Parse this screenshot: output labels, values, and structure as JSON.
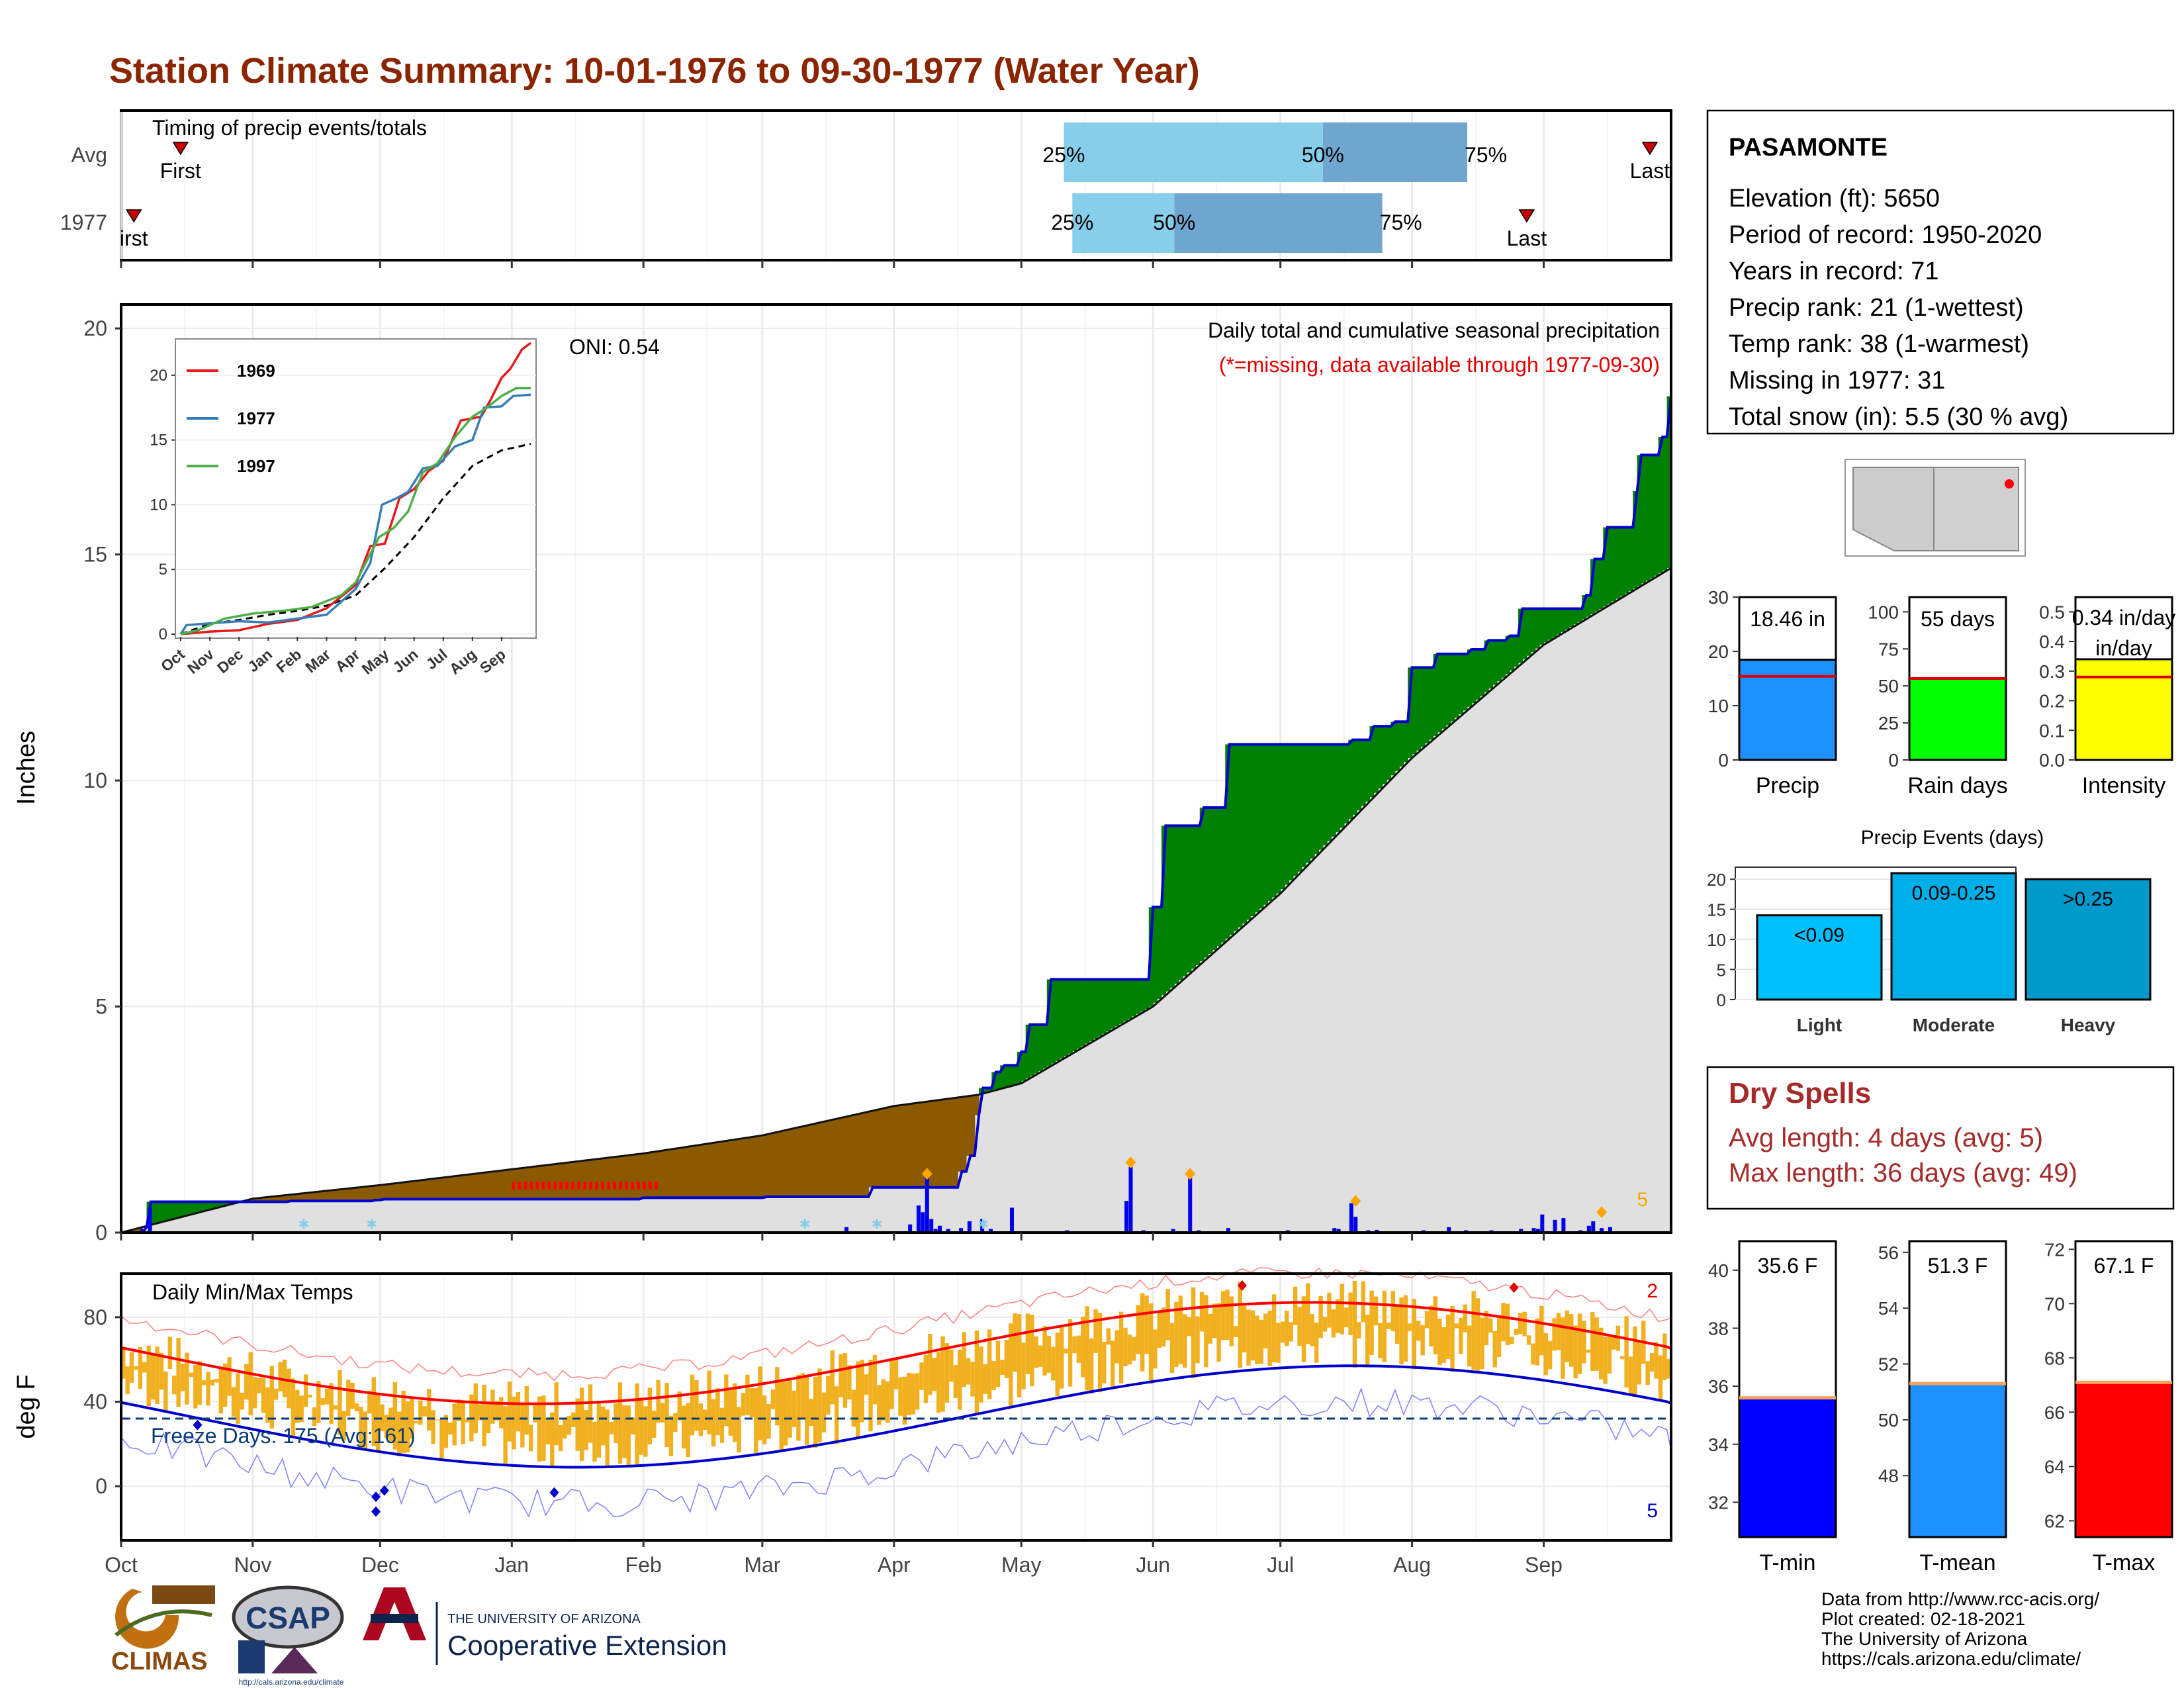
{
  "title": "Station Climate Summary: 10-01-1976 to 09-30-1977 (Water Year)",
  "months": [
    "Oct",
    "Nov",
    "Dec",
    "Jan",
    "Feb",
    "Mar",
    "Apr",
    "May",
    "Jun",
    "Jul",
    "Aug",
    "Sep"
  ],
  "timing": {
    "label": "Timing of precip events/totals",
    "rows": [
      "Avg",
      "1977"
    ],
    "avg": {
      "first_day": 14,
      "last_day": 360,
      "p25": 222,
      "p50": 283,
      "p75": 317,
      "p25_label": "25%",
      "p50_label": "50%",
      "p75_label": "75%",
      "first_label": "First",
      "last_label": "Last"
    },
    "year": {
      "first_day": 3,
      "last_day": 331,
      "p25": 224,
      "p50": 248,
      "p75": 297,
      "p25_label": "25%",
      "p50_label": "50%",
      "p75_label": "75%",
      "first_label": "irst",
      "last_label": "Last"
    }
  },
  "station": {
    "name": "PASAMONTE",
    "lines": [
      "Elevation (ft): 5650",
      "Period of record: 1950-2020",
      "Years in record: 71",
      "Precip rank: 21 (1-wettest)",
      "Temp rank: 38 (1-warmest)",
      "Missing in 1977: 31",
      "Total snow (in): 5.5 (30 % avg)"
    ]
  },
  "precip_panel": {
    "ylabel": "Inches",
    "oni": "ONI: 0.54",
    "caption": "Daily total and cumulative seasonal precipitation",
    "missing_note": "(*=missing, data available through 1977-09-30)",
    "corner_count": "5",
    "colors": {
      "cumulative_line": "#0000cd",
      "wet": "#008000",
      "dry": "#8b5a00",
      "normal": "#e0e0e0",
      "daily_bar": "#0000ee",
      "missing": "#ff0000"
    }
  },
  "inset": {
    "series": [
      {
        "name": "1969",
        "color": "#e41a1c"
      },
      {
        "name": "1977",
        "color": "#377eb8"
      },
      {
        "name": "1997",
        "color": "#4daf4a"
      }
    ],
    "y_ticks": [
      "0",
      "5",
      "10",
      "15",
      "20"
    ]
  },
  "summary_bars": [
    {
      "label": "Precip",
      "value_label": "18.46 in",
      "value": 18.46,
      "avg": 15.4,
      "ymax": 30,
      "ticks": [
        "0",
        "10",
        "20",
        "30"
      ],
      "color": "#1e90ff"
    },
    {
      "label": "Rain days",
      "value_label": "55 days",
      "value": 55,
      "avg": 55,
      "ymax": 110,
      "ticks": [
        "0",
        "25",
        "50",
        "75",
        "100"
      ],
      "color": "#00ff00"
    },
    {
      "label": "Intensity",
      "value_label": "0.34 in/day",
      "value": 0.34,
      "avg": 0.28,
      "ymax": 0.55,
      "ticks": [
        "0.0",
        "0.1",
        "0.2",
        "0.3",
        "0.4",
        "0.5"
      ],
      "color": "#ffff00"
    }
  ],
  "precip_events": {
    "title": "Precip Events (days)",
    "y_ticks": [
      "0",
      "5",
      "10",
      "15",
      "20"
    ],
    "bars": [
      {
        "category": "Light",
        "label": "<0.09",
        "value": 14,
        "color": "#00bfff"
      },
      {
        "category": "Moderate",
        "label": "0.09-0.25",
        "value": 21,
        "color": "#00aee8"
      },
      {
        "category": "Heavy",
        "label": ">0.25",
        "value": 20,
        "color": "#0099cc"
      }
    ]
  },
  "dry_spells": {
    "title": "Dry Spells",
    "avg_line": "Avg length: 4 days (avg: 5)",
    "max_line": "Max length: 36 days (avg: 49)"
  },
  "temp_panel": {
    "ylabel": "deg F",
    "title": "Daily Min/Max Temps",
    "freeze": "Freeze Days: 175 (Avg:161)",
    "freeze_threshold": 32,
    "count_high": "2",
    "count_low": "5",
    "y_ticks": [
      "0",
      "40",
      "80"
    ],
    "colors": {
      "range": "#f0b020",
      "max_norm": "#ff0000",
      "min_norm": "#0000cd"
    }
  },
  "temp_bars": [
    {
      "label": "T-min",
      "value_label": "35.6 F",
      "value": 35.6,
      "ymin": 30.8,
      "ymax": 41,
      "ticks": [
        "32",
        "34",
        "36",
        "38",
        "40"
      ],
      "color": "#0000ff"
    },
    {
      "label": "T-mean",
      "value_label": "51.3 F",
      "value": 51.3,
      "ymin": 45.8,
      "ymax": 56.4,
      "ticks": [
        "48",
        "50",
        "52",
        "54",
        "56"
      ],
      "color": "#1e90ff"
    },
    {
      "label": "T-max",
      "value_label": "67.1 F",
      "value": 67.1,
      "ymin": 61.4,
      "ymax": 72.3,
      "ticks": [
        "62",
        "64",
        "66",
        "68",
        "70",
        "72"
      ],
      "color": "#ff0000"
    }
  ],
  "logos": {
    "climas": "CLIMAS",
    "csap": "CSAP",
    "csap_url": "http://cals.arizona.edu/climate",
    "ua_top": "THE UNIVERSITY OF ARIZONA",
    "ua_bottom": "Cooperative Extension"
  },
  "credits": [
    "Data from http://www.rcc-acis.org/",
    "Plot created: 02-18-2021",
    "The University of Arizona",
    "https://cals.arizona.edu/climate/"
  ]
}
